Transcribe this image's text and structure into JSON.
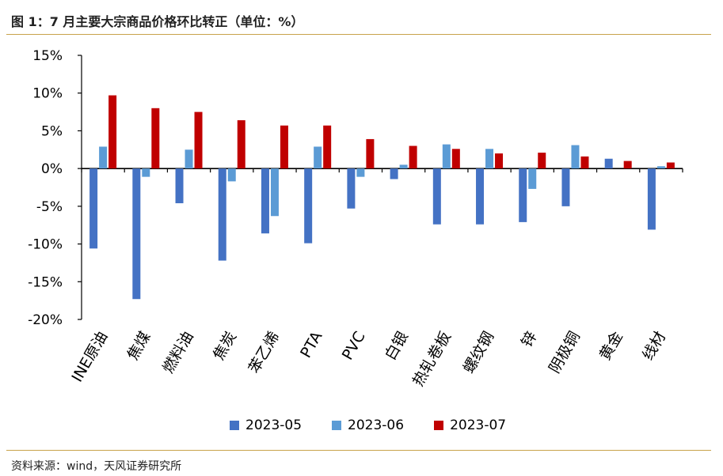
{
  "header": {
    "title": "图 1：7 月主要大宗商品价格环比转正（单位：%）"
  },
  "footer": {
    "source": "资料来源：wind，天风证券研究所"
  },
  "chart_data": {
    "type": "bar",
    "title": "图 1：7 月主要大宗商品价格环比转正（单位：%）",
    "xlabel": "",
    "ylabel": "",
    "ylim": [
      -20,
      15
    ],
    "yticks": [
      15,
      10,
      5,
      0,
      -5,
      -10,
      -15,
      -20
    ],
    "ytick_labels": [
      "15%",
      "10%",
      "5%",
      "0%",
      "-5%",
      "-10%",
      "-15%",
      "-20%"
    ],
    "categories": [
      "INE原油",
      "焦煤",
      "燃料油",
      "焦炭",
      "苯乙烯",
      "PTA",
      "PVC",
      "白银",
      "热轧卷板",
      "螺纹钢",
      "锌",
      "阴极铜",
      "黄金",
      "线材"
    ],
    "series": [
      {
        "name": "2023-05",
        "color": "#4472c4",
        "values": [
          -10.6,
          -17.3,
          -4.6,
          -12.2,
          -8.6,
          -9.9,
          -5.3,
          -1.4,
          -7.4,
          -7.4,
          -7.1,
          -5.0,
          1.3,
          -8.1
        ]
      },
      {
        "name": "2023-06",
        "color": "#5b9bd5",
        "values": [
          2.9,
          -1.1,
          2.5,
          -1.7,
          -6.3,
          2.9,
          -1.1,
          0.5,
          3.2,
          2.6,
          -2.7,
          3.1,
          0.0,
          0.3
        ]
      },
      {
        "name": "2023-07",
        "color": "#c00000",
        "values": [
          9.7,
          8.0,
          7.5,
          6.4,
          5.7,
          5.7,
          3.9,
          3.0,
          2.6,
          2.0,
          2.1,
          1.6,
          1.0,
          0.8
        ]
      }
    ],
    "grid": false,
    "legend_position": "bottom"
  }
}
